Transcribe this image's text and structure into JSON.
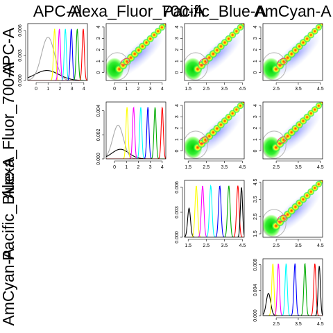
{
  "chart_data": {
    "type": "scatter-matrix",
    "variables": [
      "APC-A",
      "Alexa_Fluor_700-A",
      "Pacific_Blue-A",
      "AmCyan-A"
    ],
    "ranges": {
      "APC-A": [
        -0.7,
        4.3
      ],
      "Alexa_Fluor_700-A": [
        -0.7,
        4.3
      ],
      "Pacific_Blue-A": [
        1.3,
        4.6
      ],
      "AmCyan-A": [
        1.9,
        4.6
      ]
    },
    "axis_ticks": {
      "APC-A": [
        "0",
        "1",
        "2",
        "3",
        "4"
      ],
      "Alexa_Fluor_700-A": [
        "0",
        "1",
        "2",
        "3",
        "4"
      ],
      "Pacific_Blue-A": [
        "1.5",
        "2.5",
        "3.5",
        "4.5"
      ],
      "AmCyan-A": [
        "2.5",
        "3.5",
        "4.5"
      ]
    },
    "diag_ticks": [
      [
        "0.000",
        "0.003",
        "0.006"
      ],
      [
        "0.000",
        "0.002",
        "0.004"
      ],
      [
        "0.000",
        "0.003",
        "0.006"
      ],
      [
        "0.000",
        "0.004",
        "0.008"
      ]
    ],
    "diag_ymax": [
      0.0065,
      0.0045,
      0.0065,
      0.0085
    ],
    "density_colors": [
      "#000000",
      "#aaaaaa",
      "#ffff00",
      "#ff00ff",
      "#00ffff",
      "#0000ff",
      "#00aa00",
      "#ff0000"
    ],
    "diagonal_densities": [
      {
        "variable": "APC-A",
        "curves": [
          {
            "color": "#000000",
            "center": 0.9,
            "width": 1.0,
            "peak": 0.0012
          },
          {
            "color": "#aaaaaa",
            "center": 1.0,
            "width": 0.55,
            "peak": 0.0052
          },
          {
            "color": "#ffff00",
            "center": 1.55,
            "width": 0.09,
            "peak": 0.0062
          },
          {
            "color": "#ff00ff",
            "center": 1.95,
            "width": 0.09,
            "peak": 0.0062
          },
          {
            "color": "#00ffff",
            "center": 2.45,
            "width": 0.09,
            "peak": 0.0062
          },
          {
            "color": "#0000ff",
            "center": 2.95,
            "width": 0.09,
            "peak": 0.0062
          },
          {
            "color": "#00aa00",
            "center": 3.45,
            "width": 0.09,
            "peak": 0.0062
          },
          {
            "color": "#ff0000",
            "center": 3.95,
            "width": 0.09,
            "peak": 0.0062
          }
        ]
      },
      {
        "variable": "Alexa_Fluor_700-A",
        "curves": [
          {
            "color": "#000000",
            "center": 0.5,
            "width": 0.7,
            "peak": 0.0008
          },
          {
            "color": "#aaaaaa",
            "center": 0.3,
            "width": 0.45,
            "peak": 0.0028
          },
          {
            "color": "#ffff00",
            "center": 1.05,
            "width": 0.09,
            "peak": 0.0043
          },
          {
            "color": "#ff00ff",
            "center": 1.6,
            "width": 0.09,
            "peak": 0.0043
          },
          {
            "color": "#00ffff",
            "center": 2.2,
            "width": 0.09,
            "peak": 0.0043
          },
          {
            "color": "#0000ff",
            "center": 2.8,
            "width": 0.09,
            "peak": 0.0043
          },
          {
            "color": "#00aa00",
            "center": 3.4,
            "width": 0.09,
            "peak": 0.0043
          },
          {
            "color": "#ff0000",
            "center": 4.0,
            "width": 0.09,
            "peak": 0.0043
          }
        ]
      },
      {
        "variable": "Pacific_Blue-A",
        "curves": [
          {
            "color": "#000000",
            "center": 1.55,
            "width": 0.08,
            "peak": 0.0035
          },
          {
            "color": "#ffff00",
            "center": 1.95,
            "width": 0.07,
            "peak": 0.0062
          },
          {
            "color": "#ff00ff",
            "center": 2.3,
            "width": 0.07,
            "peak": 0.0062
          },
          {
            "color": "#00ffff",
            "center": 2.75,
            "width": 0.07,
            "peak": 0.0062
          },
          {
            "color": "#0000ff",
            "center": 3.25,
            "width": 0.07,
            "peak": 0.0062
          },
          {
            "color": "#00aa00",
            "center": 3.75,
            "width": 0.07,
            "peak": 0.0062
          },
          {
            "color": "#ff0000",
            "center": 4.25,
            "width": 0.07,
            "peak": 0.0062
          },
          {
            "color": "#000000",
            "center": 4.45,
            "width": 0.06,
            "peak": 0.006
          }
        ]
      },
      {
        "variable": "AmCyan-A",
        "curves": [
          {
            "color": "#000000",
            "center": 2.15,
            "width": 0.1,
            "peak": 0.0035
          },
          {
            "color": "#ffff00",
            "center": 2.35,
            "width": 0.05,
            "peak": 0.0082
          },
          {
            "color": "#ff00ff",
            "center": 2.6,
            "width": 0.05,
            "peak": 0.0082
          },
          {
            "color": "#00ffff",
            "center": 2.95,
            "width": 0.05,
            "peak": 0.0082
          },
          {
            "color": "#0000ff",
            "center": 3.35,
            "width": 0.05,
            "peak": 0.0082
          },
          {
            "color": "#00aa00",
            "center": 3.8,
            "width": 0.05,
            "peak": 0.0082
          },
          {
            "color": "#ff0000",
            "center": 4.25,
            "width": 0.05,
            "peak": 0.0082
          },
          {
            "color": "#000000",
            "center": 4.45,
            "width": 0.05,
            "peak": 0.0078
          }
        ]
      }
    ],
    "scatter_panels": [
      {
        "x": "Alexa_Fluor_700-A",
        "y": "APC-A"
      },
      {
        "x": "Pacific_Blue-A",
        "y": "APC-A"
      },
      {
        "x": "AmCyan-A",
        "y": "APC-A"
      },
      {
        "x": "Pacific_Blue-A",
        "y": "Alexa_Fluor_700-A"
      },
      {
        "x": "AmCyan-A",
        "y": "Alexa_Fluor_700-A"
      },
      {
        "x": "AmCyan-A",
        "y": "Pacific_Blue-A"
      }
    ],
    "bead_populations": [
      0,
      1,
      2,
      3,
      4,
      5,
      6,
      7,
      8,
      9,
      10,
      11,
      12
    ]
  }
}
